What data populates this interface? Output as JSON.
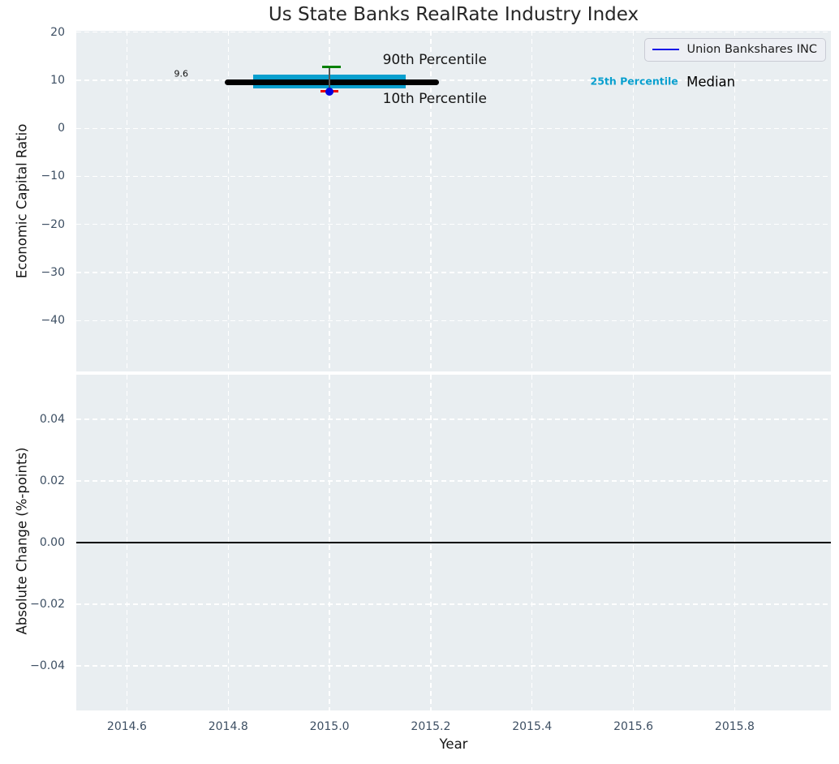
{
  "title": "Us State Banks RealRate Industry Index",
  "colors": {
    "axes_background": "#e9eef1",
    "grid": "#ffffff",
    "tick_label": "#3d4f63",
    "median_line": "#000000",
    "iqr_band": "#089fce",
    "p90_tick": "#008000",
    "p10_tick": "#ee0000",
    "company_dot": "#0000e0",
    "legend_line": "#1212e8",
    "zero_line": "#000000"
  },
  "chart_data": [
    {
      "type": "boxplot",
      "title": "Us State Banks RealRate Industry Index",
      "ylabel": "Economic Capital Ratio",
      "xlim": [
        2014.5,
        2015.99
      ],
      "ylim": [
        -50.6,
        20.3
      ],
      "grid": true,
      "legend": {
        "label": "Union Bankshares INC",
        "position": "upper right"
      },
      "xticks": [
        {
          "v": 2014.6,
          "label": "2014.6"
        },
        {
          "v": 2014.8,
          "label": "2014.8"
        },
        {
          "v": 2015.0,
          "label": "2015.0"
        },
        {
          "v": 2015.2,
          "label": "2015.2"
        },
        {
          "v": 2015.4,
          "label": "2015.4"
        },
        {
          "v": 2015.6,
          "label": "2015.6"
        },
        {
          "v": 2015.8,
          "label": "2015.8"
        }
      ],
      "yticks": [
        {
          "v": 20,
          "label": "20"
        },
        {
          "v": 10,
          "label": "10"
        },
        {
          "v": 0,
          "label": "0"
        },
        {
          "v": -10,
          "label": "−10"
        },
        {
          "v": -20,
          "label": "−20"
        },
        {
          "v": -30,
          "label": "−30"
        },
        {
          "v": -40,
          "label": "−40"
        }
      ],
      "box": {
        "x_center": 2015.0,
        "median": {
          "value": 9.6,
          "x0": 2014.8,
          "x1": 2015.21
        },
        "iqr": {
          "q1": 8.3,
          "q3": 11.2,
          "x0": 2014.85,
          "x1": 2015.15
        },
        "p90": {
          "value": 12.8,
          "x0": 2014.985,
          "x1": 2015.023
        },
        "p10": {
          "value": 7.7,
          "x0": 2014.983,
          "x1": 2015.018
        }
      },
      "company_point": {
        "name": "Union Bankshares INC",
        "x": 2015.0,
        "value": 7.7
      },
      "annotations": [
        {
          "text": "90th Percentile",
          "x": 2015.105,
          "y": 14.3,
          "style": "large"
        },
        {
          "text": "10th Percentile",
          "x": 2015.105,
          "y": 6.1,
          "style": "large"
        },
        {
          "text": "25th Percentile",
          "x": 2015.515,
          "y": 9.8,
          "style": "cyan"
        },
        {
          "text": "Median",
          "x": 2015.705,
          "y": 9.6,
          "style": "medium"
        },
        {
          "text": "9.6",
          "x": 2014.693,
          "y": 11.3,
          "style": "small"
        }
      ]
    },
    {
      "type": "line",
      "ylabel": "Absolute Change (%-points)",
      "xlabel": "Year",
      "xlim": [
        2014.5,
        2015.99
      ],
      "ylim": [
        -0.0545,
        0.0545
      ],
      "grid": true,
      "zero_line": true,
      "series": [],
      "xticks": [
        {
          "v": 2014.6,
          "label": "2014.6"
        },
        {
          "v": 2014.8,
          "label": "2014.8"
        },
        {
          "v": 2015.0,
          "label": "2015.0"
        },
        {
          "v": 2015.2,
          "label": "2015.2"
        },
        {
          "v": 2015.4,
          "label": "2015.4"
        },
        {
          "v": 2015.6,
          "label": "2015.6"
        },
        {
          "v": 2015.8,
          "label": "2015.8"
        }
      ],
      "yticks": [
        {
          "v": 0.04,
          "label": "0.04"
        },
        {
          "v": 0.02,
          "label": "0.02"
        },
        {
          "v": 0.0,
          "label": "0.00"
        },
        {
          "v": -0.02,
          "label": "−0.02"
        },
        {
          "v": -0.04,
          "label": "−0.04"
        }
      ]
    }
  ]
}
